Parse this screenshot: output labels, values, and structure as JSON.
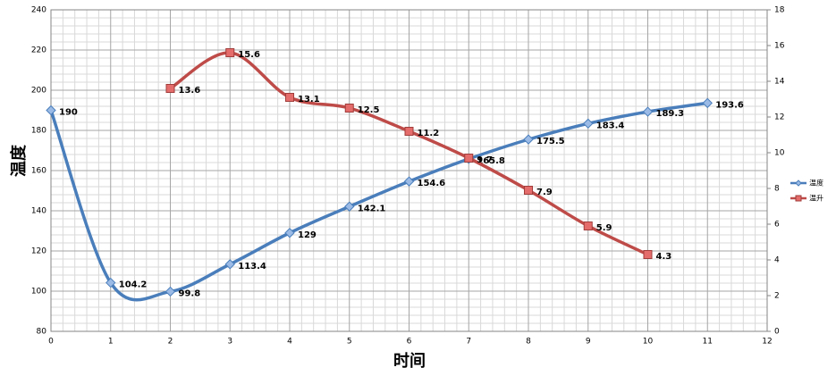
{
  "chart_data": {
    "type": "line",
    "x": [
      0,
      1,
      2,
      3,
      4,
      5,
      6,
      7,
      8,
      9,
      10,
      11
    ],
    "series": [
      {
        "name": "温度",
        "color": "#4a7ebb",
        "values": [
          190,
          104.2,
          99.8,
          113.4,
          129,
          142.1,
          154.6,
          165.8,
          175.5,
          183.4,
          189.3,
          193.6
        ]
      },
      {
        "name": "温升",
        "color": "#be4b48",
        "axis": "y2",
        "values": [
          null,
          null,
          13.6,
          15.6,
          13.1,
          12.5,
          11.2,
          9.7,
          7.9,
          5.9,
          4.3,
          null
        ]
      }
    ],
    "xlabel": "时间",
    "ylabel": "温度",
    "xlim": [
      0,
      12
    ],
    "xticks": [
      0,
      1,
      2,
      3,
      4,
      5,
      6,
      7,
      8,
      9,
      10,
      11,
      12
    ],
    "ylim": [
      80,
      240
    ],
    "yticks": [
      80,
      100,
      120,
      140,
      160,
      180,
      200,
      220,
      240
    ],
    "y2lim": [
      0,
      18
    ],
    "y2ticks": [
      0,
      2,
      4,
      6,
      8,
      10,
      12,
      14,
      16,
      18
    ],
    "grid": true,
    "smooth": true,
    "legend": "right"
  }
}
